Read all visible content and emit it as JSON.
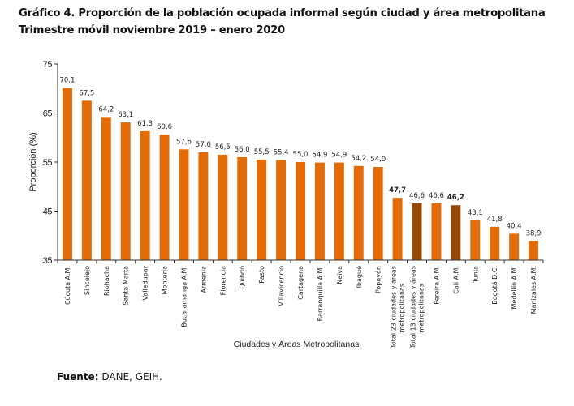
{
  "header": {
    "title": "Gráfico 4. Proporción de la población ocupada informal según ciudad y área metropolitana",
    "subtitle": "Trimestre móvil noviembre 2019 – enero 2020"
  },
  "source": {
    "label": "Fuente:",
    "text": "DANE, GEIH."
  },
  "colors": {
    "bar_default": "#E36C0A",
    "bar_highlight": "#974806",
    "axis": "#333333"
  },
  "chart_data": {
    "type": "bar",
    "title": "Gráfico 4. Proporción de la población ocupada informal según ciudad y área metropolitana",
    "subtitle": "Trimestre móvil noviembre 2019 – enero 2020",
    "xlabel": "Ciudades y Áreas Metropolitanas",
    "ylabel": "Proporción (%)",
    "ylim": [
      35,
      75
    ],
    "yticks": [
      35,
      45,
      55,
      65,
      75
    ],
    "grid": false,
    "legend": "none",
    "categories": [
      "Cúcuta A.M.",
      "Sincelejo",
      "Riohacha",
      "Santa Marta",
      "Valledupar",
      "Montería",
      "Bucaramanga A.M.",
      "Armenia",
      "Florencia",
      "Quibdó",
      "Pasto",
      "Villavicencio",
      "Cartagena",
      "Barranquilla A.M.",
      "Neiva",
      "Ibagué",
      "Popayán",
      "Total 23 ciudades y áreas|metropolitanas",
      "Total 13 ciudades y áreas|metropolitanas",
      "Pereira A.M.",
      "Cali A.M.",
      "Tunja",
      "Bogotá D.C.",
      "Medellín A.M.",
      "Manizales A.M."
    ],
    "values": [
      70.1,
      67.5,
      64.2,
      63.1,
      61.3,
      60.6,
      57.6,
      57.0,
      56.5,
      56.0,
      55.5,
      55.4,
      55.0,
      54.9,
      54.9,
      54.2,
      54.0,
      47.7,
      46.6,
      46.6,
      46.2,
      43.1,
      41.8,
      40.4,
      38.9
    ],
    "value_labels": [
      "70,1",
      "67,5",
      "64,2",
      "63,1",
      "61,3",
      "60,6",
      "57,6",
      "57,0",
      "56,5",
      "56,0",
      "55,5",
      "55,4",
      "55,0",
      "54,9",
      "54,9",
      "54,2",
      "54,0",
      "47,7",
      "46,6",
      "46,6",
      "46,2",
      "43,1",
      "41,8",
      "40,4",
      "38,9"
    ],
    "highlighted": [
      false,
      false,
      false,
      false,
      false,
      false,
      false,
      false,
      false,
      false,
      false,
      false,
      false,
      false,
      false,
      false,
      false,
      false,
      true,
      false,
      true,
      false,
      false,
      false,
      false
    ],
    "bold_labels": [
      false,
      false,
      false,
      false,
      false,
      false,
      false,
      false,
      false,
      false,
      false,
      false,
      false,
      false,
      false,
      false,
      false,
      true,
      false,
      false,
      true,
      false,
      false,
      false,
      false
    ]
  }
}
